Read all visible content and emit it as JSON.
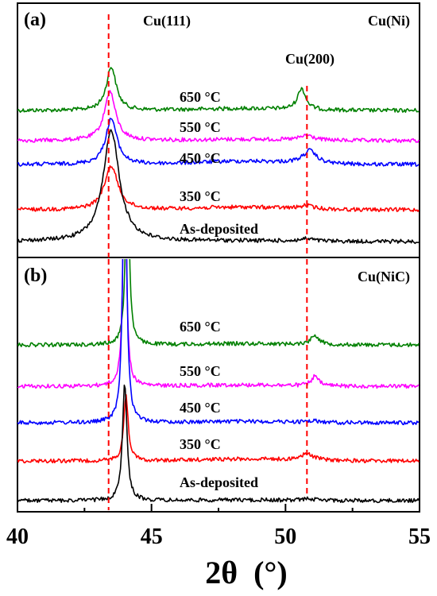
{
  "colors": {
    "as_deposited": "#000000",
    "c350": "#ff0000",
    "c450": "#0000ff",
    "c550": "#ff00ff",
    "c650": "#008000",
    "reference_lines": "#ff0000"
  },
  "chart_data": {
    "type": "line",
    "xlabel": "2θ  (°)",
    "xlim": [
      40,
      55
    ],
    "x_ticks": [
      "40",
      "45",
      "50",
      "55"
    ],
    "reference_lines": [
      43.4,
      50.8
    ],
    "panels": [
      {
        "label": "(a)",
        "sample": "Cu(Ni)",
        "peak_labels": [
          {
            "text": "Cu(111)",
            "x": 43.4
          },
          {
            "text": "Cu(200)",
            "x": 50.8
          }
        ],
        "series": [
          {
            "name": "650 °C",
            "color_key": "c650",
            "peaks": [
              {
                "x": 43.5,
                "h": 55,
                "w": 0.22
              },
              {
                "x": 50.6,
                "h": 27,
                "w": 0.18
              }
            ]
          },
          {
            "name": "550 °C",
            "color_key": "c550",
            "peaks": [
              {
                "x": 43.45,
                "h": 62,
                "w": 0.25
              },
              {
                "x": 50.8,
                "h": 6,
                "w": 0.3
              }
            ]
          },
          {
            "name": "450 °C",
            "color_key": "c450",
            "peaks": [
              {
                "x": 43.5,
                "h": 58,
                "w": 0.25
              },
              {
                "x": 50.9,
                "h": 16,
                "w": 0.3
              }
            ]
          },
          {
            "name": "350 °C",
            "color_key": "c350",
            "peaks": [
              {
                "x": 43.5,
                "h": 55,
                "w": 0.3
              },
              {
                "x": 50.8,
                "h": 4,
                "w": 0.3
              }
            ]
          },
          {
            "name": "As-deposited",
            "color_key": "as_deposited",
            "peaks": [
              {
                "x": 43.5,
                "h": 140,
                "w": 0.36
              },
              {
                "x": 50.8,
                "h": 3,
                "w": 0.3
              }
            ]
          }
        ]
      },
      {
        "label": "(b)",
        "sample": "Cu(NiC)",
        "peak_labels": [],
        "series": [
          {
            "name": "650 °C",
            "color_key": "c650",
            "peaks": [
              {
                "x": 44.1,
                "h": 240,
                "w": 0.08
              },
              {
                "x": 51.1,
                "h": 12,
                "w": 0.18
              }
            ]
          },
          {
            "name": "550 °C",
            "color_key": "c550",
            "peaks": [
              {
                "x": 44.0,
                "h": 320,
                "w": 0.07
              },
              {
                "x": 51.1,
                "h": 12,
                "w": 0.16
              }
            ]
          },
          {
            "name": "450 °C",
            "color_key": "c450",
            "peaks": [
              {
                "x": 44.0,
                "h": 380,
                "w": 0.08
              },
              {
                "x": 51.0,
                "h": 2,
                "w": 0.3
              }
            ]
          },
          {
            "name": "350 °C",
            "color_key": "c350",
            "peaks": [
              {
                "x": 44.05,
                "h": 82,
                "w": 0.1
              },
              {
                "x": 50.8,
                "h": 8,
                "w": 0.3
              }
            ]
          },
          {
            "name": "As-deposited",
            "color_key": "as_deposited",
            "peaks": [
              {
                "x": 44.0,
                "h": 148,
                "w": 0.1
              },
              {
                "x": 50.9,
                "h": 2,
                "w": 0.3
              }
            ]
          }
        ]
      }
    ]
  }
}
